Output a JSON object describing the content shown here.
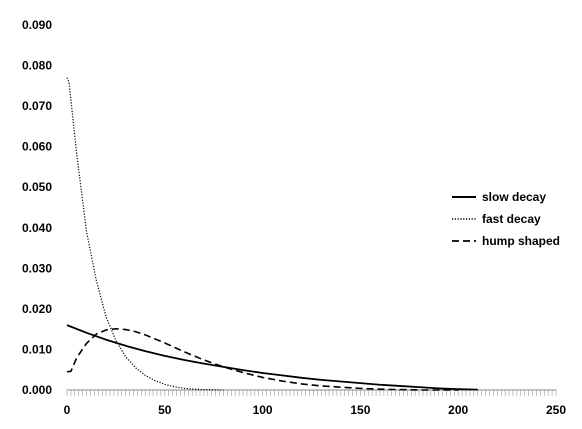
{
  "chart_data": {
    "type": "line",
    "title": "",
    "xlabel": "",
    "ylabel": "",
    "xlim": [
      0,
      250
    ],
    "ylim": [
      0,
      0.09
    ],
    "x_ticks": [
      "0",
      "50",
      "100",
      "150",
      "200",
      "250"
    ],
    "y_ticks": [
      "0.000",
      "0.010",
      "0.020",
      "0.030",
      "0.040",
      "0.050",
      "0.060",
      "0.070",
      "0.080",
      "0.090"
    ],
    "grid": false,
    "legend_position": "right",
    "series": [
      {
        "name": "slow decay",
        "style": "solid",
        "color": "#000000",
        "x": [
          0,
          10,
          20,
          30,
          40,
          50,
          60,
          70,
          80,
          90,
          100,
          110,
          120,
          130,
          140,
          150,
          160,
          170,
          180,
          190,
          200,
          210
        ],
        "y": [
          0.016,
          0.0141,
          0.0124,
          0.0109,
          0.0096,
          0.0084,
          0.0074,
          0.0065,
          0.0057,
          0.0049,
          0.0042,
          0.0036,
          0.003,
          0.0025,
          0.0021,
          0.0017,
          0.0013,
          0.001,
          0.0007,
          0.0004,
          0.0002,
          0.0001
        ]
      },
      {
        "name": "fast decay",
        "style": "dotted",
        "color": "#000000",
        "x": [
          0,
          1,
          5,
          10,
          15,
          20,
          25,
          30,
          35,
          40,
          45,
          50,
          55,
          60,
          65,
          70,
          80
        ],
        "y": [
          0.077,
          0.076,
          0.058,
          0.039,
          0.027,
          0.018,
          0.0122,
          0.0082,
          0.0055,
          0.0036,
          0.0023,
          0.0014,
          0.0008,
          0.0004,
          0.0002,
          0.0001,
          0.0
        ]
      },
      {
        "name": "hump shaped",
        "style": "dashed",
        "color": "#000000",
        "x": [
          0,
          2,
          5,
          10,
          15,
          20,
          25,
          30,
          35,
          40,
          50,
          60,
          70,
          80,
          90,
          100,
          110,
          120,
          130,
          140,
          150,
          160,
          170,
          180,
          190,
          200
        ],
        "y": [
          0.0045,
          0.0046,
          0.008,
          0.0115,
          0.0138,
          0.0148,
          0.0151,
          0.0149,
          0.0144,
          0.0136,
          0.0116,
          0.0094,
          0.0074,
          0.0057,
          0.0043,
          0.0031,
          0.0022,
          0.0015,
          0.001,
          0.0007,
          0.0004,
          0.0002,
          0.0001,
          0.0,
          0.0,
          0.0
        ]
      }
    ]
  }
}
